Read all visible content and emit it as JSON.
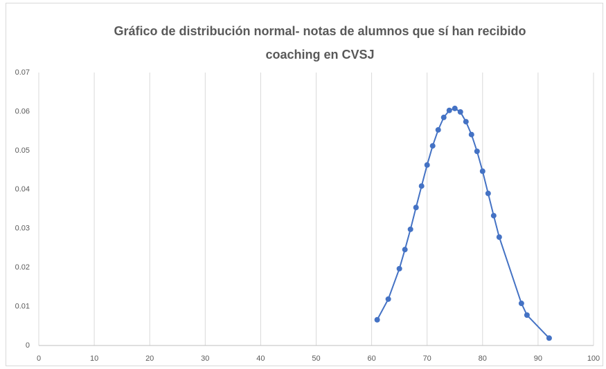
{
  "chart_data": {
    "type": "scatter",
    "title": "Gráfico de distribución normal- notas de alumnos que sí han recibido coaching en CVSJ",
    "series": [
      {
        "color": "#4472c4",
        "x": [
          61,
          63,
          65,
          66,
          67,
          68,
          69,
          70,
          71,
          72,
          73,
          74,
          75,
          76,
          77,
          78,
          79,
          80,
          81,
          82,
          83,
          87,
          88,
          92
        ],
        "values": [
          0.0066,
          0.0119,
          0.0197,
          0.0246,
          0.0298,
          0.0354,
          0.0409,
          0.0463,
          0.0512,
          0.0553,
          0.0585,
          0.0603,
          0.0608,
          0.0599,
          0.0574,
          0.0541,
          0.0498,
          0.0447,
          0.039,
          0.0333,
          0.0278,
          0.0108,
          0.0078,
          0.0019
        ]
      }
    ],
    "xlim": [
      0,
      100
    ],
    "xticks": [
      0,
      10,
      20,
      30,
      40,
      50,
      60,
      70,
      80,
      90,
      100
    ],
    "ylim": [
      0,
      0.07
    ],
    "yticks": [
      0,
      0.01,
      0.02,
      0.03,
      0.04,
      0.05,
      0.06,
      0.07
    ],
    "grid": "x"
  }
}
